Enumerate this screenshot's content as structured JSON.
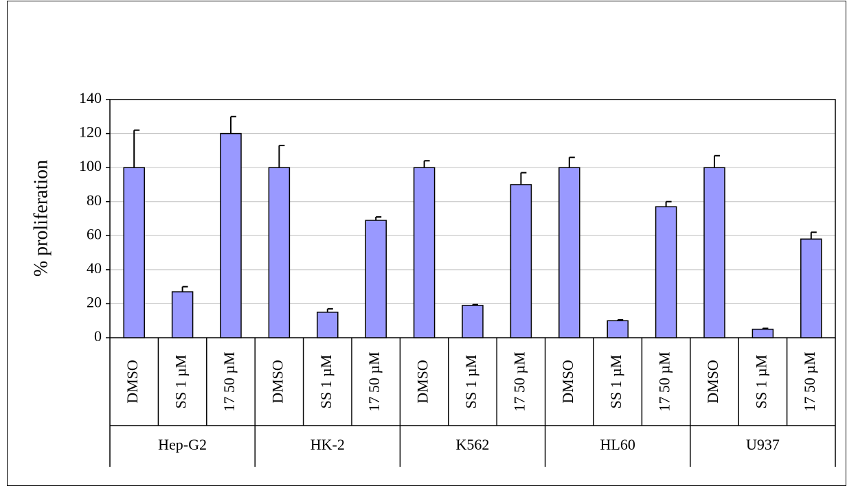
{
  "chart_data": {
    "type": "bar",
    "y_label": "% proliferation",
    "categories": [
      "DMSO",
      "SS 1 µM",
      "17 50 µM",
      "DMSO",
      "SS 1 µM",
      "17 50 µM",
      "DMSO",
      "SS 1 µM",
      "17 50 µM",
      "DMSO",
      "SS 1 µM",
      "17 50 µM",
      "DMSO",
      "SS 1 µM",
      "17 50 µM"
    ],
    "groups": [
      "Hep-G2",
      "HK-2",
      "K562",
      "HL60",
      "U937"
    ],
    "values": [
      100,
      27,
      120,
      100,
      15,
      69,
      100,
      19,
      90,
      100,
      10,
      77,
      100,
      5,
      58
    ],
    "errors": [
      22,
      3,
      10,
      13,
      2,
      2,
      4,
      0.5,
      7,
      6,
      0.5,
      3,
      7,
      0.5,
      4
    ],
    "color": "#9999ff",
    "ylim": [
      0,
      140
    ],
    "yticks": [
      0,
      20,
      40,
      60,
      80,
      100,
      120,
      140
    ],
    "grid": true
  }
}
